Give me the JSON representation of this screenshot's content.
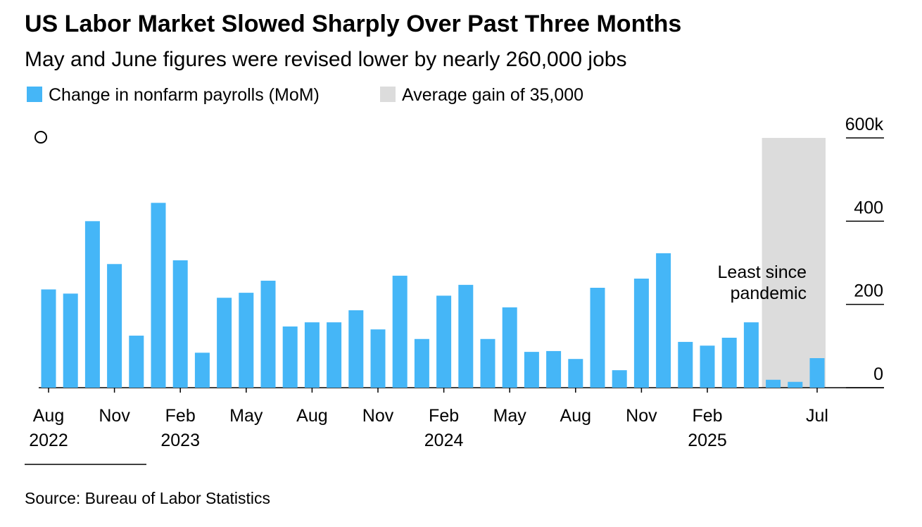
{
  "chart_data": {
    "type": "bar",
    "title": "US Labor Market Slowed Sharply Over Past Three Months",
    "subtitle": "May and June figures were revised lower by nearly 260,000 jobs",
    "series_name": "Change in nonfarm payrolls (MoM)",
    "color": "#45b6f7",
    "shade": {
      "label": "Average gain of 35,000",
      "color": "#dcdcdc",
      "range": [
        33,
        35
      ]
    },
    "annotation": [
      "Least since",
      "pandemic"
    ],
    "source": "Source: Bureau of Labor Statistics",
    "categories": [
      "Aug",
      null,
      null,
      "Nov",
      null,
      null,
      "Feb",
      null,
      null,
      "May",
      null,
      null,
      "Aug",
      null,
      null,
      "Nov",
      null,
      null,
      "Feb",
      null,
      null,
      "May",
      null,
      null,
      "Aug",
      null,
      null,
      "Nov",
      null,
      null,
      "Feb",
      null,
      null,
      null,
      null,
      "Jul"
    ],
    "category_years": [
      "2022",
      null,
      null,
      null,
      null,
      null,
      "2023",
      null,
      null,
      null,
      null,
      null,
      null,
      null,
      null,
      null,
      null,
      null,
      "2024",
      null,
      null,
      null,
      null,
      null,
      null,
      null,
      null,
      null,
      null,
      null,
      "2025",
      null,
      null,
      null,
      null,
      null
    ],
    "values": [
      236,
      226,
      400,
      297,
      125,
      444,
      306,
      84,
      216,
      228,
      257,
      147,
      157,
      157,
      186,
      140,
      269,
      117,
      221,
      247,
      117,
      193,
      86,
      88,
      69,
      240,
      42,
      262,
      323,
      110,
      101,
      120,
      157,
      19,
      14,
      71
    ],
    "ylim": [
      0,
      600
    ],
    "yticks": [
      0,
      200,
      400,
      {
        "value": 600,
        "label": "600k"
      }
    ]
  }
}
